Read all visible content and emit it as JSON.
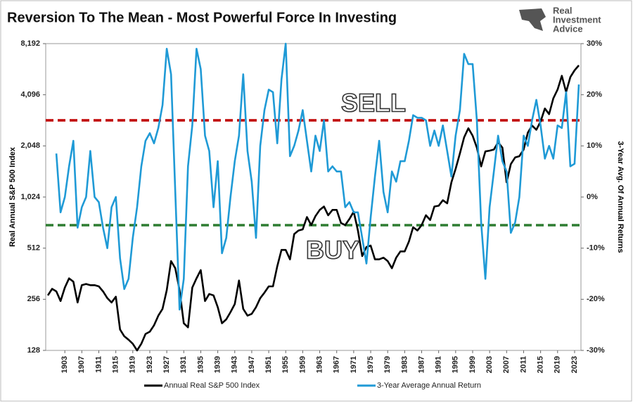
{
  "chart_data": {
    "type": "line",
    "title": "Reversion To The Mean - Most Powerful Force In Investing",
    "brand": [
      "Real",
      "Investment",
      "Advice"
    ],
    "y_label": "Real Annual S&P 500 Index",
    "y2_label": "3-Year Avg. Of Annual Returns",
    "log_y": true,
    "x": [
      1899,
      1900,
      1901,
      1902,
      1903,
      1904,
      1905,
      1906,
      1907,
      1908,
      1909,
      1910,
      1911,
      1912,
      1913,
      1914,
      1915,
      1916,
      1917,
      1918,
      1919,
      1920,
      1921,
      1922,
      1923,
      1924,
      1925,
      1926,
      1927,
      1928,
      1929,
      1930,
      1931,
      1932,
      1933,
      1934,
      1935,
      1936,
      1937,
      1938,
      1939,
      1940,
      1941,
      1942,
      1943,
      1944,
      1945,
      1946,
      1947,
      1948,
      1949,
      1950,
      1951,
      1952,
      1953,
      1954,
      1955,
      1956,
      1957,
      1958,
      1959,
      1960,
      1961,
      1962,
      1963,
      1964,
      1965,
      1966,
      1967,
      1968,
      1969,
      1970,
      1971,
      1972,
      1973,
      1974,
      1975,
      1976,
      1977,
      1978,
      1979,
      1980,
      1981,
      1982,
      1983,
      1984,
      1985,
      1986,
      1987,
      1988,
      1989,
      1990,
      1991,
      1992,
      1993,
      1994,
      1995,
      1996,
      1997,
      1998,
      1999,
      2000,
      2001,
      2002,
      2003,
      2004,
      2005,
      2006,
      2007,
      2008,
      2009,
      2010,
      2011,
      2012,
      2013,
      2014,
      2015,
      2016,
      2017,
      2018,
      2019,
      2020,
      2021,
      2022,
      2023,
      2024
    ],
    "xlim": [
      1898.5,
      2024.5
    ],
    "xticks": [
      1903,
      1907,
      1911,
      1915,
      1919,
      1923,
      1927,
      1931,
      1935,
      1939,
      1943,
      1947,
      1951,
      1955,
      1959,
      1963,
      1967,
      1971,
      1975,
      1979,
      1983,
      1987,
      1991,
      1995,
      1999,
      2003,
      2007,
      2011,
      2015,
      2019,
      2023
    ],
    "ylim": [
      128,
      8192
    ],
    "yticks": [
      128,
      256,
      512,
      {
        "value": 1024,
        "label": "1,024"
      },
      {
        "value": 2048,
        "label": "2,048"
      },
      {
        "value": 4096,
        "label": "4,096"
      },
      {
        "value": 8192,
        "label": "8,192"
      }
    ],
    "y2lim": [
      -30,
      30
    ],
    "y2ticks": [
      {
        "value": -30,
        "label": "-30%"
      },
      {
        "value": -20,
        "label": "-20%"
      },
      {
        "value": -10,
        "label": "-10%"
      },
      {
        "value": 0,
        "label": "0%"
      },
      {
        "value": 10,
        "label": "10%"
      },
      {
        "value": 20,
        "label": "20%"
      },
      {
        "value": 30,
        "label": "30%"
      }
    ],
    "series": [
      {
        "name": "Annual Real S&P 500 Index",
        "color": "#000000",
        "values": [
          270,
          295,
          285,
          250,
          300,
          340,
          325,
          245,
          310,
          315,
          310,
          310,
          305,
          285,
          260,
          245,
          265,
          170,
          155,
          148,
          140,
          128,
          140,
          160,
          165,
          180,
          205,
          225,
          290,
          430,
          390,
          290,
          185,
          175,
          300,
          340,
          380,
          250,
          275,
          270,
          230,
          185,
          195,
          215,
          240,
          330,
          225,
          205,
          210,
          230,
          260,
          280,
          305,
          305,
          400,
          500,
          500,
          440,
          620,
          650,
          660,
          780,
          700,
          790,
          860,
          900,
          800,
          860,
          860,
          720,
          700,
          760,
          840,
          650,
          460,
          520,
          530,
          440,
          440,
          450,
          430,
          390,
          450,
          490,
          490,
          560,
          680,
          650,
          700,
          800,
          750,
          900,
          910,
          980,
          940,
          1250,
          1500,
          1850,
          2300,
          2600,
          2350,
          2000,
          1550,
          1900,
          1920,
          1950,
          2150,
          2000,
          1250,
          1600,
          1750,
          1780,
          1950,
          2450,
          2700,
          2550,
          2850,
          3400,
          3150,
          3900,
          4400,
          5300,
          4250,
          5200,
          5700,
          6100
        ]
      },
      {
        "name": "3-Year Average Annual Return",
        "color": "#1f9ad6",
        "axis": "y2",
        "values": [
          null,
          null,
          8.5,
          -3,
          0,
          6,
          11,
          -6,
          -2,
          0,
          9,
          0,
          -1,
          -6,
          -10,
          -2,
          0,
          -12,
          -18,
          -16,
          -8,
          -2,
          6,
          11,
          12.5,
          10.5,
          13.5,
          18,
          29,
          24,
          1,
          -22,
          -16,
          6,
          14,
          29,
          25,
          12,
          9,
          -2,
          7,
          -11,
          -8,
          0,
          7,
          12,
          24,
          9,
          3,
          -8,
          10,
          17,
          21,
          20.5,
          10.5,
          23,
          30,
          8,
          10,
          13,
          17,
          11,
          5,
          12,
          9,
          15,
          5,
          6,
          5,
          5,
          -2,
          -1,
          -3,
          -3,
          -8,
          -13,
          -4,
          4,
          11,
          1,
          -3,
          5,
          3,
          7,
          7,
          11,
          16,
          15.5,
          15.5,
          15,
          10,
          13,
          10,
          14,
          9,
          4,
          12,
          17,
          28,
          26,
          26,
          15,
          -5,
          -16,
          -2,
          5,
          12,
          7,
          5,
          -7,
          -5,
          0,
          12,
          10,
          15,
          19,
          14,
          7.5,
          10,
          7.5,
          14,
          13.5,
          20.5,
          6,
          6.5,
          22
        ]
      }
    ],
    "reference_lines": [
      {
        "label": "SELL",
        "value": 15,
        "axis": "y2",
        "color": "#c00000"
      },
      {
        "label": "BUY",
        "value": -5.5,
        "axis": "y2",
        "color": "#2e7d32"
      }
    ]
  }
}
